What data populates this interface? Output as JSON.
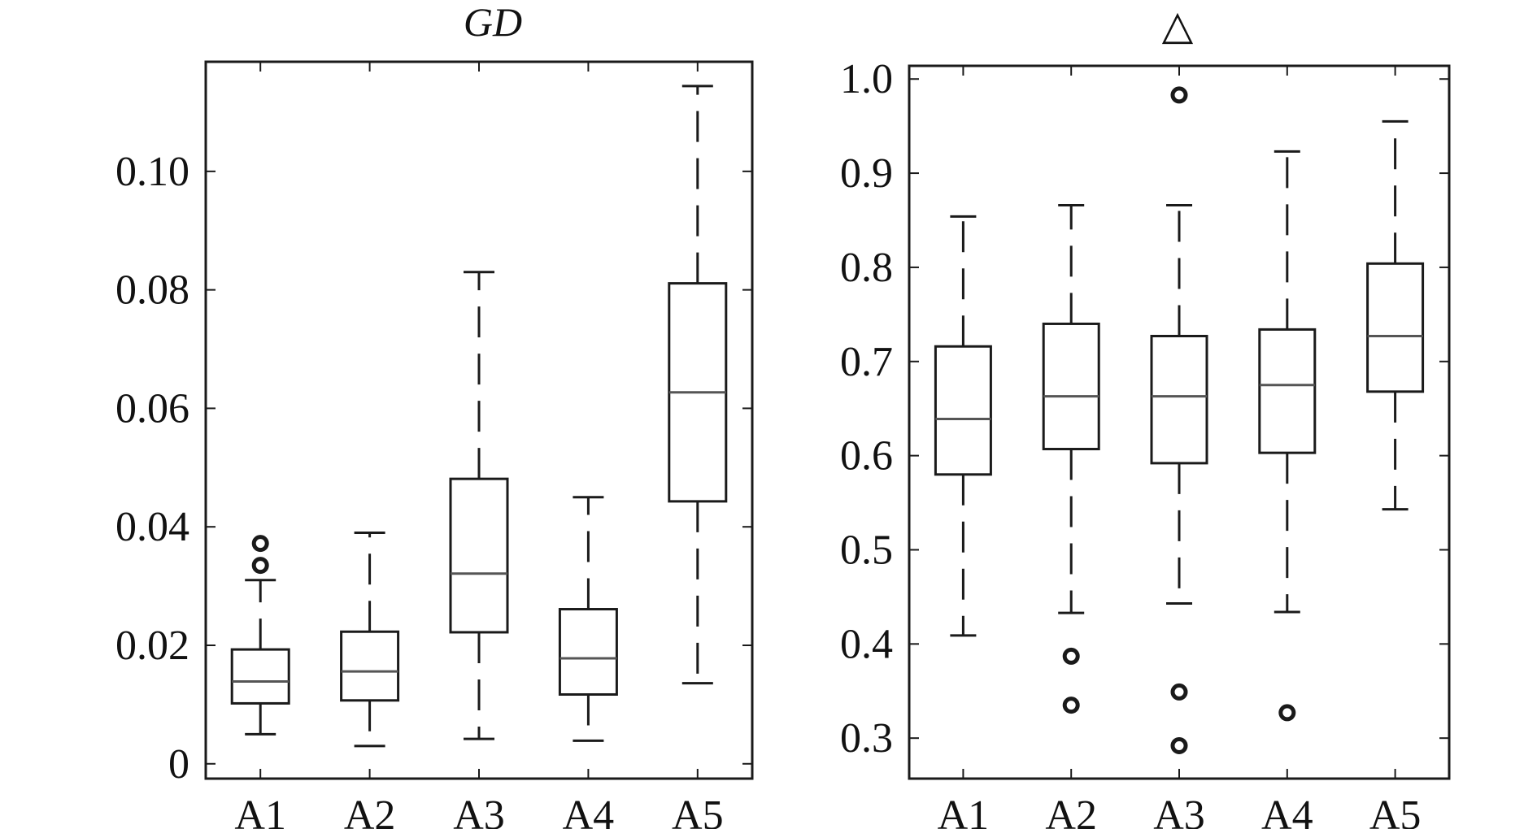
{
  "chart_data": [
    {
      "type": "box",
      "title": "GD",
      "title_style": "italic",
      "categories": [
        "A1",
        "A2",
        "A3",
        "A4",
        "A5"
      ],
      "ylim": [
        -0.0025,
        0.1185
      ],
      "yticks": [
        0,
        0.02,
        0.04,
        0.06,
        0.08,
        0.1
      ],
      "ytick_labels": [
        "0",
        "0.02",
        "0.04",
        "0.06",
        "0.08",
        "0.10"
      ],
      "series": [
        {
          "category": "A1",
          "whisker_low": 0.005,
          "q1": 0.0102,
          "median": 0.0139,
          "q3": 0.0193,
          "whisker_high": 0.031,
          "outliers": [
            0.0335,
            0.0372
          ]
        },
        {
          "category": "A2",
          "whisker_low": 0.003,
          "q1": 0.0107,
          "median": 0.0156,
          "q3": 0.0223,
          "whisker_high": 0.039,
          "outliers": []
        },
        {
          "category": "A3",
          "whisker_low": 0.0042,
          "q1": 0.0222,
          "median": 0.0321,
          "q3": 0.0481,
          "whisker_high": 0.083,
          "outliers": []
        },
        {
          "category": "A4",
          "whisker_low": 0.0039,
          "q1": 0.0117,
          "median": 0.0178,
          "q3": 0.0261,
          "whisker_high": 0.045,
          "outliers": []
        },
        {
          "category": "A5",
          "whisker_low": 0.0136,
          "q1": 0.0443,
          "median": 0.0627,
          "q3": 0.0811,
          "whisker_high": 0.1144,
          "outliers": []
        }
      ],
      "grid": false
    },
    {
      "type": "box",
      "title": "△",
      "title_style": "normal",
      "categories": [
        "A1",
        "A2",
        "A3",
        "A4",
        "A5"
      ],
      "ylim": [
        0.257,
        1.014
      ],
      "yticks": [
        0.3,
        0.4,
        0.5,
        0.6,
        0.7,
        0.8,
        0.9,
        1.0
      ],
      "ytick_labels": [
        "0.3",
        "0.4",
        "0.5",
        "0.6",
        "0.7",
        "0.8",
        "0.9",
        "1.0"
      ],
      "series": [
        {
          "category": "A1",
          "whisker_low": 0.409,
          "q1": 0.58,
          "median": 0.639,
          "q3": 0.716,
          "whisker_high": 0.854,
          "outliers": []
        },
        {
          "category": "A2",
          "whisker_low": 0.433,
          "q1": 0.607,
          "median": 0.663,
          "q3": 0.74,
          "whisker_high": 0.866,
          "outliers": [
            0.387,
            0.335
          ]
        },
        {
          "category": "A3",
          "whisker_low": 0.443,
          "q1": 0.592,
          "median": 0.663,
          "q3": 0.727,
          "whisker_high": 0.866,
          "outliers": [
            0.983,
            0.349,
            0.292
          ]
        },
        {
          "category": "A4",
          "whisker_low": 0.434,
          "q1": 0.603,
          "median": 0.675,
          "q3": 0.734,
          "whisker_high": 0.923,
          "outliers": [
            0.327
          ]
        },
        {
          "category": "A5",
          "whisker_low": 0.543,
          "q1": 0.668,
          "median": 0.727,
          "q3": 0.804,
          "whisker_high": 0.955,
          "outliers": []
        }
      ],
      "grid": false
    }
  ]
}
